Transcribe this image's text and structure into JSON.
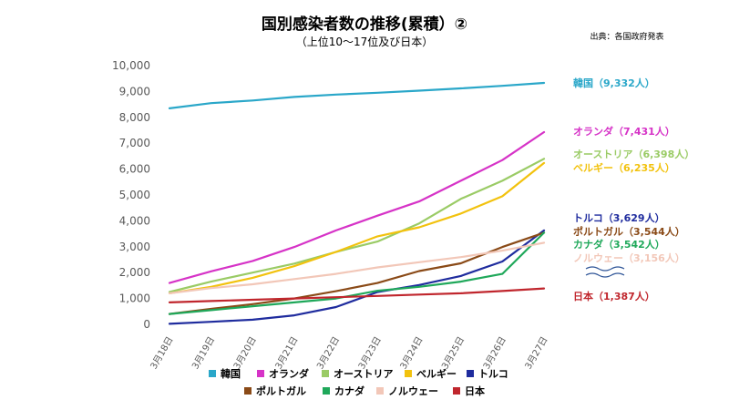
{
  "header": {
    "title": "国別感染者数の推移(累積）②",
    "subtitle": "（上位10～17位及び日本）",
    "source": "出典：各国政府発表"
  },
  "chart_data": {
    "type": "line",
    "title": "国別感染者数の推移(累積）②",
    "subtitle": "（上位10～17位及び日本）",
    "xlabel": "",
    "ylabel": "",
    "ylim": [
      0,
      10000
    ],
    "yticks": [
      0,
      1000,
      2000,
      3000,
      4000,
      5000,
      6000,
      7000,
      8000,
      9000,
      10000
    ],
    "ytick_labels": [
      "0",
      "1,000",
      "2,000",
      "3,000",
      "4,000",
      "5,000",
      "6,000",
      "7,000",
      "8,000",
      "9,000",
      "10,000"
    ],
    "categories": [
      "3月18日",
      "3月19日",
      "3月20日",
      "3月21日",
      "3月22日",
      "3月23日",
      "3月24日",
      "3月25日",
      "3月26日",
      "3月27日"
    ],
    "grid": false,
    "legend_position": "bottom",
    "series": [
      {
        "name": "韓国",
        "color": "#2AA7C9",
        "end_label": "韓国（9,332人）",
        "values": [
          8350,
          8550,
          8650,
          8790,
          8880,
          8950,
          9030,
          9120,
          9220,
          9332
        ]
      },
      {
        "name": "オランダ",
        "color": "#D633C7",
        "end_label": "オランダ（7,431人）",
        "values": [
          1600,
          2050,
          2450,
          2990,
          3630,
          4200,
          4750,
          5550,
          6350,
          7431
        ]
      },
      {
        "name": "オーストリア",
        "color": "#9ACB65",
        "end_label": "オーストリア（6,398人）",
        "values": [
          1250,
          1650,
          2000,
          2350,
          2800,
          3200,
          3900,
          4850,
          5550,
          6398
        ]
      },
      {
        "name": "ベルギー",
        "color": "#F2C20E",
        "end_label": "ベルギー（6,235人）",
        "values": [
          1200,
          1450,
          1800,
          2250,
          2800,
          3400,
          3750,
          4280,
          4950,
          6235
        ]
      },
      {
        "name": "トルコ",
        "color": "#1F2C9E",
        "end_label": "トルコ（3,629人）",
        "values": [
          20,
          100,
          180,
          350,
          670,
          1250,
          1520,
          1870,
          2430,
          3629
        ]
      },
      {
        "name": "ポルトガル",
        "color": "#8A4A17",
        "end_label": "ポルトガル（3,544人）",
        "values": [
          400,
          600,
          780,
          1000,
          1280,
          1600,
          2060,
          2360,
          2990,
          3544
        ]
      },
      {
        "name": "カナダ",
        "color": "#1FA85A",
        "end_label": "カナダ（3,542人）",
        "values": [
          400,
          550,
          700,
          850,
          1000,
          1300,
          1450,
          1650,
          1950,
          3542
        ]
      },
      {
        "name": "ノルウェー",
        "color": "#F2C7B8",
        "end_label": "ノルウェー（3,156人）",
        "values": [
          1200,
          1400,
          1550,
          1750,
          1950,
          2200,
          2400,
          2600,
          2850,
          3156
        ]
      },
      {
        "name": "日本",
        "color": "#C0262D",
        "end_label": "日本（1,387人）",
        "values": [
          850,
          900,
          950,
          1000,
          1050,
          1100,
          1150,
          1200,
          1290,
          1387
        ]
      }
    ]
  }
}
